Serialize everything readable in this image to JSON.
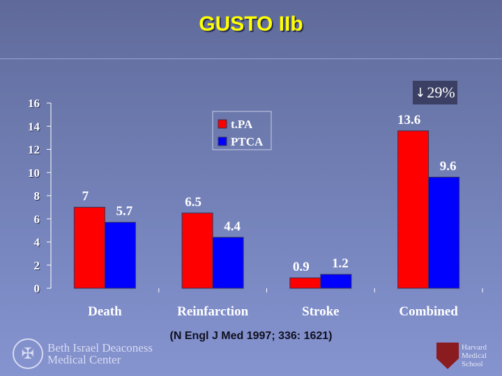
{
  "slide": {
    "title": "GUSTO IIb",
    "badge_arrow": "↓",
    "badge_text": "29%",
    "citation": "(N Engl J Med 1997; 336: 1621)",
    "logo_left_line1": "Beth Israel Deaconess",
    "logo_left_line2": "Medical Center",
    "logo_right_line1": "Harvard",
    "logo_right_line2": "Medical",
    "logo_right_line3": "School",
    "logo_left_icon": "seal-icon",
    "logo_right_icon": "harvard-shield-icon"
  },
  "colors": {
    "tpa": "#ff0000",
    "ptca": "#0000ff"
  },
  "chart_data": {
    "type": "bar",
    "categories": [
      "Death",
      "Reinfarction",
      "Stroke",
      "Combined"
    ],
    "series": [
      {
        "name": "t.PA",
        "values": [
          7,
          6.5,
          0.9,
          13.6
        ]
      },
      {
        "name": "PTCA",
        "values": [
          5.7,
          4.4,
          1.2,
          9.6
        ]
      }
    ],
    "data_labels": [
      [
        "7",
        "6.5",
        "0.9",
        "13.6"
      ],
      [
        "5.7",
        "4.4",
        "1.2",
        "9.6"
      ]
    ],
    "ylim": [
      0,
      16
    ],
    "yticks": [
      0,
      2,
      4,
      6,
      8,
      10,
      12,
      14,
      16
    ],
    "legend_position": "top-center",
    "grid": false
  }
}
